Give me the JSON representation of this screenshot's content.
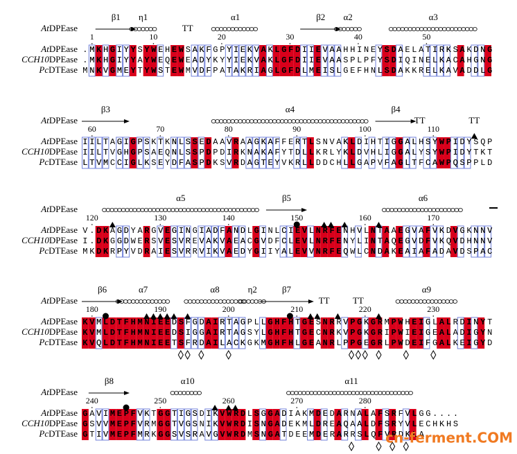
{
  "blocks": [
    {
      "header": {
        "species": "At",
        "suffix": "DPEase"
      },
      "structure": [
        "β1",
        "η1",
        "TT",
        "α1",
        "β2",
        "α2",
        "α3"
      ],
      "numbers": [
        1,
        10,
        20,
        30,
        40,
        50
      ],
      "rows": [
        {
          "species": "At",
          "suffix": "DPEase",
          "sequence": ".MKHGIYYSYWEHEWSAKFGPYIEKVAKLGFDIIEVAAHHINEYSDAELATIRKSAKDNG"
        },
        {
          "species": "CCH10",
          "suffix": "DPEase",
          "sequence": ".MKHGIYYAYWEQEWEADYKYYIEKVAKLGFDIIEVAASPLPFYSDIQINELKACAHGNG"
        },
        {
          "species": "Pc",
          "suffix": "DTEase",
          "sequence": "MNKVGMEYTYWSTEWMVDFPATAKRIAGLGFDLMEISLGEFHNLSDAKKRELKAVADDLG"
        }
      ]
    },
    {
      "header": {
        "species": "At",
        "suffix": "DPEase"
      },
      "structure": [
        "β3",
        "α4",
        "β4",
        "TT",
        "TT"
      ],
      "numbers": [
        60,
        70,
        80,
        90,
        100,
        110
      ],
      "rows": [
        {
          "species": "At",
          "suffix": "DPEase",
          "sequence": "IILTAGIGPSKTKNLSSEDAAVRAAGKAFFERTLSNVAKLDIHTIGGALHSYWPIDYSQP"
        },
        {
          "species": "CCH10",
          "suffix": "DPEase",
          "sequence": "IILTVGHGPSAEQNLSSPDPDIRKNAKAFYTDLLKRLYKLDVHLIGGALYSYWPIDYTKT"
        },
        {
          "species": "Pc",
          "suffix": "DTEase",
          "sequence": "LTVMCCIGLKSEYDFASPDKSVRDAGTEYVKRLLDDCHLLGAPVFAGLTFCAWPQSPPLD"
        }
      ]
    },
    {
      "header": {
        "species": "At",
        "suffix": "DPEase"
      },
      "structure": [
        "α5",
        "β5",
        "α6"
      ],
      "numbers": [
        120,
        130,
        140,
        150,
        160,
        170
      ],
      "rows": [
        {
          "species": "At",
          "suffix": "DPEase",
          "sequence": "V.DKAGDYARGVEGINGIADFANDLGINLCIEVLNRFENHVLNTAAEGVAFVKDVGKNNV"
        },
        {
          "species": "CCH10",
          "suffix": "DPEase",
          "sequence": "I.DKGGDWERSVESVREVAKVAEACGVDFCLEVLNRFENYLINTAQEGVDFVKQVDHNNV"
        },
        {
          "species": "Pc",
          "suffix": "DTEase",
          "sequence": "MKDKRPYVDRAIESVRRVIKVAEDYGIIYALEVVNRFEQWLCNDAKEAIAFADAVDSPAC"
        }
      ]
    },
    {
      "header": {
        "species": "At",
        "suffix": "DPEase"
      },
      "structure": [
        "β6",
        "α7",
        "α8",
        "η2",
        "β7",
        "TT",
        "TT",
        "α9"
      ],
      "numbers": [
        180,
        190,
        200,
        210,
        220,
        230
      ],
      "rows": [
        {
          "species": "At",
          "suffix": "DPEase",
          "sequence": "KVMLDTFHMNIEEDSFGDAIRTAGPLLGHFHTGESNRRVPGKGRMPWHEIGLALRDINYT"
        },
        {
          "species": "CCH10",
          "suffix": "DPEase",
          "sequence": "KVMLDTFHMNIEEDSIGGAIRTAGSYLGHFHTGECNRKVPGKGRIPWIEIGEALADIGYN"
        },
        {
          "species": "Pc",
          "suffix": "DTEase",
          "sequence": "KVQLDTFHMNIEETSFRDAILACKGKMGHFHLGEANRLPPGEGRLPWDEIFGALKEIGYD"
        }
      ]
    },
    {
      "header": {
        "species": "At",
        "suffix": "DPEase"
      },
      "structure": [
        "β8",
        "α10",
        "α11"
      ],
      "numbers": [
        240,
        250,
        260,
        270,
        280
      ],
      "rows": [
        {
          "species": "At",
          "suffix": "DPEase",
          "sequence": "GAVIMEPFVKTGGTIGSDIKVWRDLSGGADIAKMDEDARNALAFSRFVLGG...."
        },
        {
          "species": "CCH10",
          "suffix": "DPEase",
          "sequence": "GSVVMEPFVRMGGTVGSNIKVWRDISNGADEKMLDREAQAALDFSRYVLECHKHS"
        },
        {
          "species": "Pc",
          "suffix": "DTEase",
          "sequence": "GTIVMEPFMRKGGSVSRAVGVWRDMSNGATDEEMDERARRSLQFVRDKLA"
        }
      ]
    }
  ],
  "watermark": "cn-ferment.COM"
}
